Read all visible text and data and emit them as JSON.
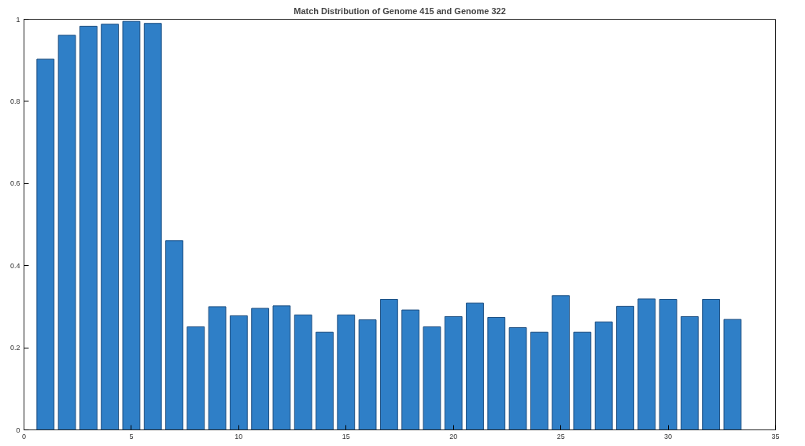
{
  "chart_data": {
    "type": "bar",
    "title": "Match Distribution of Genome 415 and Genome 322",
    "x": [
      1,
      2,
      3,
      4,
      5,
      6,
      7,
      8,
      9,
      10,
      11,
      12,
      13,
      14,
      15,
      16,
      17,
      18,
      19,
      20,
      21,
      22,
      23,
      24,
      25,
      26,
      27,
      28,
      29,
      30,
      31,
      32,
      33
    ],
    "values": [
      0.903,
      0.961,
      0.983,
      0.988,
      0.995,
      0.99,
      0.461,
      0.251,
      0.3,
      0.278,
      0.296,
      0.302,
      0.28,
      0.238,
      0.28,
      0.268,
      0.318,
      0.292,
      0.251,
      0.276,
      0.309,
      0.274,
      0.249,
      0.238,
      0.327,
      0.238,
      0.263,
      0.301,
      0.319,
      0.318,
      0.276,
      0.318,
      0.269
    ],
    "color": "#2f7fc7",
    "xlim": [
      0,
      35
    ],
    "xticks": [
      0,
      5,
      10,
      15,
      20,
      25,
      30,
      35
    ],
    "ylim": [
      0,
      1
    ],
    "yticks": [
      0,
      0.2,
      0.4,
      0.6,
      0.8,
      1
    ],
    "grid": false
  }
}
